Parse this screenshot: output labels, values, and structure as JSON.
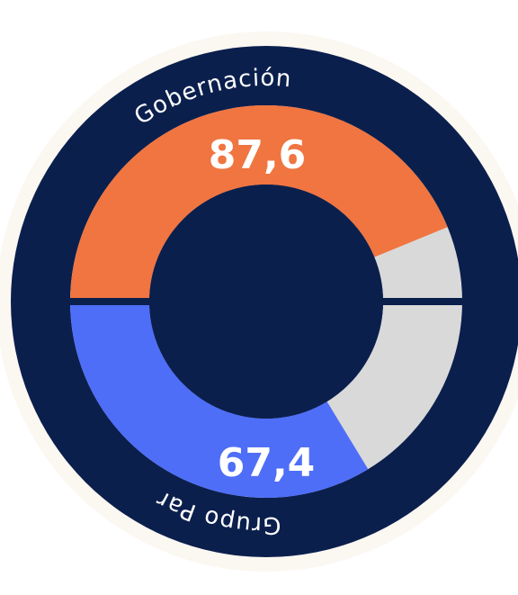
{
  "chart_data": {
    "type": "gauge",
    "series": [
      {
        "name": "Gobernación",
        "color": "#f07540",
        "values": [
          87.6
        ],
        "value_labels": [
          "87,6"
        ]
      },
      {
        "name": "Grupo Par",
        "color": "#4f6ef7",
        "values": [
          67.4
        ],
        "value_labels": [
          "67,4"
        ]
      }
    ],
    "ylim": [
      0,
      100
    ],
    "track_color": "#d9d9d9"
  }
}
